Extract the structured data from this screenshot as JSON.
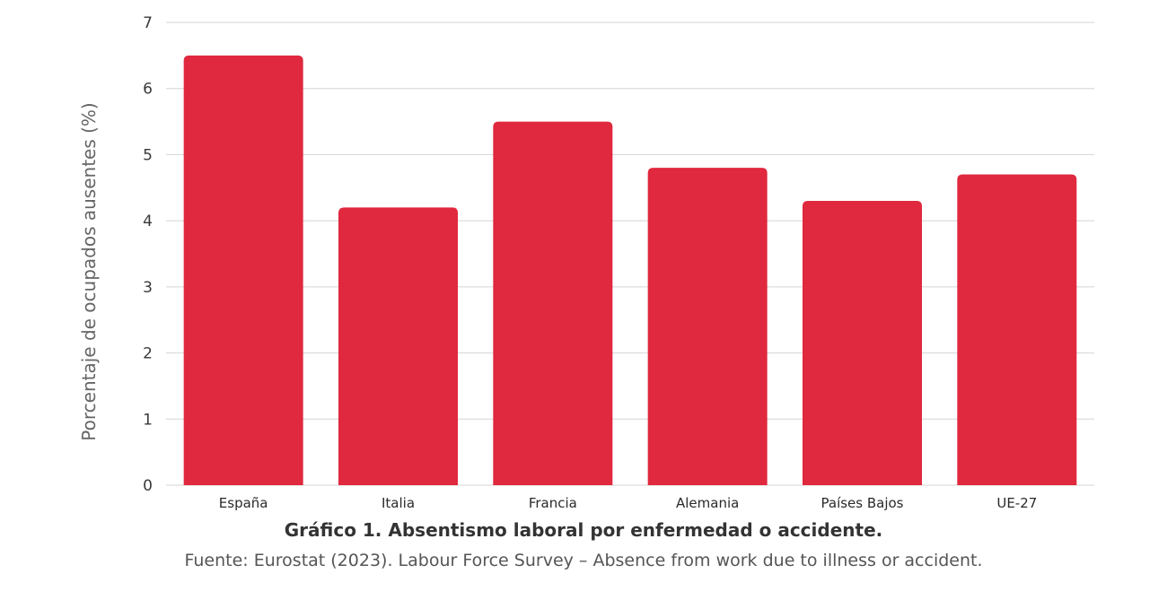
{
  "chart_data": {
    "type": "bar",
    "categories": [
      "España",
      "Italia",
      "Francia",
      "Alemania",
      "Países Bajos",
      "UE-27"
    ],
    "values": [
      6.5,
      4.2,
      5.5,
      4.8,
      4.3,
      4.7
    ],
    "ylabel": "Porcentaje de ocupados ausentes (%)",
    "xlabel": "",
    "ylim": [
      0,
      7
    ],
    "yticks": [
      0,
      1,
      2,
      3,
      4,
      5,
      6,
      7
    ],
    "grid": true,
    "bar_color": "#e0283e",
    "grid_color": "#d4d4d4"
  },
  "caption": {
    "title": "Gráfico 1. Absentismo laboral por enfermedad o accidente.",
    "source": "Fuente: Eurostat (2023). Labour Force Survey – Absence from work due to illness or accident."
  }
}
